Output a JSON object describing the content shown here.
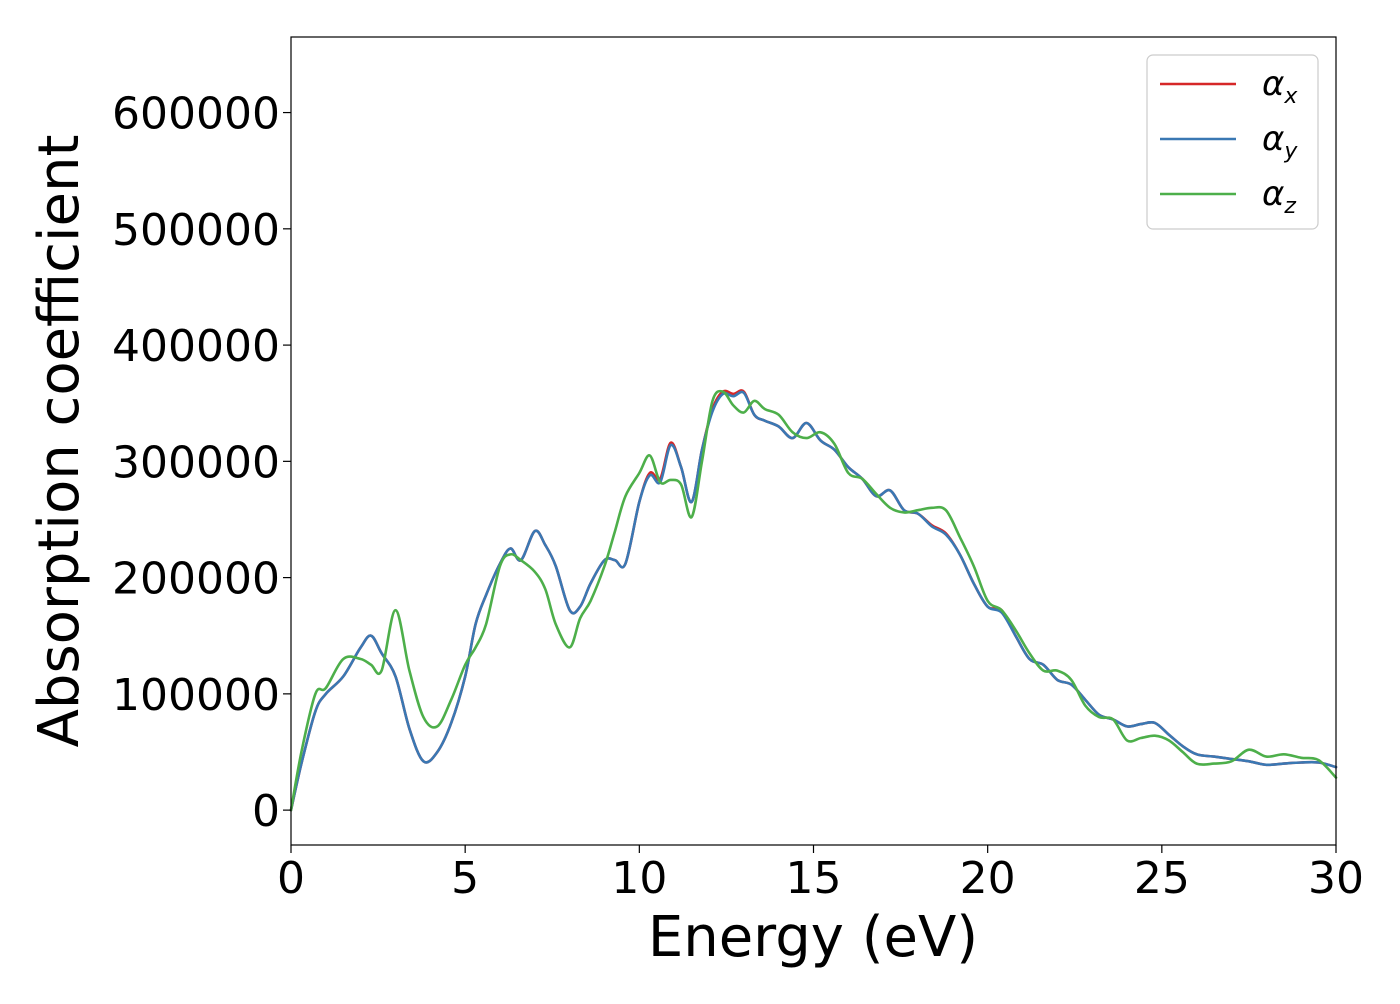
{
  "chart_data": {
    "type": "line",
    "xlabel": "Energy (eV)",
    "ylabel": "Absorption coefficient",
    "xlim": [
      0,
      30
    ],
    "ylim": [
      -30000,
      665000
    ],
    "xticks": [
      0,
      5,
      10,
      15,
      20,
      25,
      30
    ],
    "yticks": [
      0,
      100000,
      200000,
      300000,
      400000,
      500000,
      600000
    ],
    "xtick_labels": [
      "0",
      "5",
      "10",
      "15",
      "20",
      "25",
      "30"
    ],
    "ytick_labels": [
      "0",
      "100000",
      "200000",
      "300000",
      "400000",
      "500000",
      "600000"
    ],
    "grid": false,
    "legend_position": "top-right",
    "series": [
      {
        "name": "αx",
        "symbol": "α",
        "subscript": "x",
        "color": "#d62728",
        "x": [
          0,
          0.3,
          0.7,
          1.0,
          1.5,
          2.0,
          2.3,
          2.6,
          3.0,
          3.4,
          3.8,
          4.2,
          4.6,
          5.0,
          5.3,
          5.6,
          6.0,
          6.3,
          6.6,
          7.0,
          7.3,
          7.6,
          8.0,
          8.3,
          8.6,
          9.0,
          9.3,
          9.6,
          10.0,
          10.3,
          10.6,
          10.9,
          11.2,
          11.5,
          11.8,
          12.1,
          12.4,
          12.7,
          13.0,
          13.3,
          13.6,
          14.0,
          14.4,
          14.8,
          15.2,
          15.6,
          16.0,
          16.4,
          16.8,
          17.2,
          17.6,
          18.0,
          18.4,
          18.8,
          19.2,
          19.6,
          20.0,
          20.4,
          20.8,
          21.2,
          21.6,
          22.0,
          22.4,
          22.8,
          23.2,
          23.6,
          24.0,
          24.4,
          24.8,
          25.2,
          25.6,
          26.0,
          26.5,
          27.0,
          27.5,
          28.0,
          28.5,
          29.0,
          29.5,
          30.0
        ],
        "y": [
          0,
          40000,
          85000,
          100000,
          115000,
          140000,
          150000,
          135000,
          115000,
          70000,
          42000,
          50000,
          75000,
          115000,
          160000,
          185000,
          212000,
          225000,
          215000,
          240000,
          228000,
          210000,
          172000,
          175000,
          195000,
          215000,
          215000,
          212000,
          265000,
          290000,
          285000,
          316000,
          295000,
          265000,
          310000,
          345000,
          360000,
          358000,
          360000,
          340000,
          335000,
          330000,
          320000,
          333000,
          318000,
          310000,
          295000,
          285000,
          270000,
          275000,
          258000,
          255000,
          245000,
          238000,
          220000,
          195000,
          175000,
          172000,
          150000,
          130000,
          125000,
          112000,
          108000,
          95000,
          82000,
          78000,
          72000,
          74000,
          75000,
          65000,
          55000,
          48000,
          46000,
          44000,
          42000,
          39000,
          40000,
          41000,
          41000,
          37000
        ]
      },
      {
        "name": "αy",
        "symbol": "α",
        "subscript": "y",
        "color": "#3a78b3",
        "x": [
          0,
          0.3,
          0.7,
          1.0,
          1.5,
          2.0,
          2.3,
          2.6,
          3.0,
          3.4,
          3.8,
          4.2,
          4.6,
          5.0,
          5.3,
          5.6,
          6.0,
          6.3,
          6.6,
          7.0,
          7.3,
          7.6,
          8.0,
          8.3,
          8.6,
          9.0,
          9.3,
          9.6,
          10.0,
          10.3,
          10.6,
          10.9,
          11.2,
          11.5,
          11.8,
          12.1,
          12.4,
          12.7,
          13.0,
          13.3,
          13.6,
          14.0,
          14.4,
          14.8,
          15.2,
          15.6,
          16.0,
          16.4,
          16.8,
          17.2,
          17.6,
          18.0,
          18.4,
          18.8,
          19.2,
          19.6,
          20.0,
          20.4,
          20.8,
          21.2,
          21.6,
          22.0,
          22.4,
          22.8,
          23.2,
          23.6,
          24.0,
          24.4,
          24.8,
          25.2,
          25.6,
          26.0,
          26.5,
          27.0,
          27.5,
          28.0,
          28.5,
          29.0,
          29.5,
          30.0
        ],
        "y": [
          0,
          40000,
          85000,
          100000,
          115000,
          140000,
          150000,
          135000,
          115000,
          70000,
          42000,
          50000,
          75000,
          115000,
          160000,
          185000,
          212000,
          225000,
          215000,
          240000,
          228000,
          210000,
          172000,
          175000,
          195000,
          215000,
          215000,
          212000,
          265000,
          288000,
          282000,
          314000,
          295000,
          265000,
          310000,
          343000,
          358000,
          356000,
          359000,
          340000,
          335000,
          330000,
          320000,
          333000,
          318000,
          310000,
          295000,
          285000,
          270000,
          275000,
          258000,
          255000,
          244000,
          237000,
          220000,
          195000,
          175000,
          170000,
          150000,
          130000,
          125000,
          112000,
          108000,
          95000,
          82000,
          78000,
          72000,
          74000,
          75000,
          65000,
          55000,
          48000,
          46000,
          44000,
          42000,
          39000,
          40000,
          41000,
          41000,
          37000
        ]
      },
      {
        "name": "αz",
        "symbol": "α",
        "subscript": "z",
        "color": "#4daf4a",
        "x": [
          0,
          0.3,
          0.7,
          1.0,
          1.5,
          2.0,
          2.3,
          2.6,
          3.0,
          3.4,
          3.8,
          4.2,
          4.6,
          5.0,
          5.3,
          5.6,
          6.0,
          6.3,
          6.6,
          7.0,
          7.3,
          7.6,
          8.0,
          8.3,
          8.6,
          9.0,
          9.3,
          9.6,
          10.0,
          10.3,
          10.6,
          10.9,
          11.2,
          11.5,
          11.8,
          12.1,
          12.4,
          12.7,
          13.0,
          13.3,
          13.6,
          14.0,
          14.4,
          14.8,
          15.2,
          15.6,
          16.0,
          16.4,
          16.8,
          17.2,
          17.6,
          18.0,
          18.4,
          18.8,
          19.2,
          19.6,
          20.0,
          20.4,
          20.8,
          21.2,
          21.6,
          22.0,
          22.4,
          22.8,
          23.2,
          23.6,
          24.0,
          24.4,
          24.8,
          25.2,
          25.6,
          26.0,
          26.5,
          27.0,
          27.5,
          28.0,
          28.5,
          29.0,
          29.5,
          30.0
        ],
        "y": [
          0,
          50000,
          100000,
          105000,
          130000,
          130000,
          125000,
          120000,
          172000,
          120000,
          80000,
          72000,
          95000,
          125000,
          140000,
          160000,
          210000,
          220000,
          215000,
          205000,
          190000,
          160000,
          140000,
          165000,
          180000,
          210000,
          240000,
          270000,
          290000,
          305000,
          282000,
          284000,
          280000,
          252000,
          300000,
          352000,
          360000,
          348000,
          342000,
          352000,
          345000,
          340000,
          325000,
          320000,
          325000,
          315000,
          290000,
          285000,
          272000,
          260000,
          256000,
          258000,
          260000,
          258000,
          235000,
          210000,
          180000,
          172000,
          155000,
          135000,
          120000,
          120000,
          112000,
          90000,
          80000,
          78000,
          60000,
          62000,
          64000,
          60000,
          50000,
          40000,
          40000,
          42000,
          52000,
          46000,
          48000,
          45000,
          43000,
          28000
        ]
      }
    ]
  }
}
